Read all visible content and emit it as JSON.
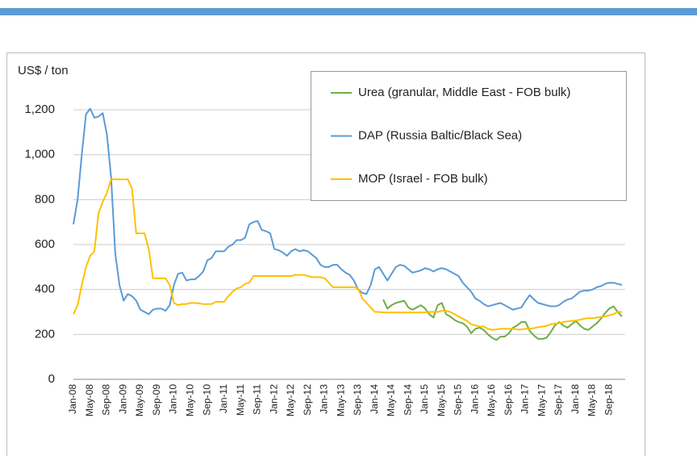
{
  "chart_data": {
    "type": "line",
    "y_label": "US$ / ton",
    "categories": [
      "Jan-08",
      null,
      null,
      null,
      "May-08",
      null,
      null,
      null,
      "Sep-08",
      null,
      null,
      null,
      "Jan-09",
      null,
      null,
      null,
      "May-09",
      null,
      null,
      null,
      "Sep-09",
      null,
      null,
      null,
      "Jan-10",
      null,
      null,
      null,
      "May-10",
      null,
      null,
      null,
      "Sep-10",
      null,
      null,
      null,
      "Jan-11",
      null,
      null,
      null,
      "May-11",
      null,
      null,
      null,
      "Sep-11",
      null,
      null,
      null,
      "Jan-12",
      null,
      null,
      null,
      "May-12",
      null,
      null,
      null,
      "Sep-12",
      null,
      null,
      null,
      "Jan-13",
      null,
      null,
      null,
      "May-13",
      null,
      null,
      null,
      "Sep-13",
      null,
      null,
      null,
      "Jan-14",
      null,
      null,
      null,
      "May-14",
      null,
      null,
      null,
      "Sep-14",
      null,
      null,
      null,
      "Jan-15",
      null,
      null,
      null,
      "May-15",
      null,
      null,
      null,
      "Sep-15",
      null,
      null,
      null,
      "Jan-16",
      null,
      null,
      null,
      "May-16",
      null,
      null,
      null,
      "Sep-16",
      null,
      null,
      null,
      "Jan-17",
      null,
      null,
      null,
      "May-17",
      null,
      null,
      null,
      "Sep-17",
      null,
      null,
      null,
      "Jan-18",
      null,
      null,
      null,
      "May-18",
      null,
      null,
      null,
      "Sep-18",
      null,
      null,
      null
    ],
    "series": [
      {
        "name": "Urea (granular, Middle East - FOB bulk)",
        "color": "#70ad47",
        "values": [
          null,
          null,
          null,
          null,
          null,
          null,
          null,
          null,
          null,
          null,
          null,
          null,
          null,
          null,
          null,
          null,
          null,
          null,
          null,
          null,
          null,
          null,
          null,
          null,
          null,
          null,
          null,
          null,
          null,
          null,
          null,
          null,
          null,
          null,
          null,
          null,
          null,
          null,
          null,
          null,
          null,
          null,
          null,
          null,
          null,
          null,
          null,
          null,
          null,
          null,
          null,
          null,
          null,
          null,
          null,
          null,
          null,
          null,
          null,
          null,
          null,
          null,
          null,
          null,
          null,
          null,
          null,
          null,
          null,
          null,
          null,
          null,
          null,
          null,
          355,
          315,
          330,
          340,
          345,
          350,
          320,
          310,
          320,
          330,
          315,
          290,
          275,
          330,
          340,
          290,
          280,
          265,
          255,
          250,
          235,
          205,
          225,
          230,
          220,
          200,
          185,
          175,
          190,
          190,
          205,
          230,
          240,
          255,
          255,
          215,
          195,
          180,
          180,
          185,
          210,
          240,
          255,
          240,
          230,
          245,
          260,
          240,
          225,
          220,
          235,
          250,
          270,
          295,
          315,
          325,
          300,
          280
        ]
      },
      {
        "name": "DAP (Russia Baltic/Black Sea)",
        "color": "#5b9bd5",
        "values": [
          690,
          800,
          1000,
          1180,
          1205,
          1165,
          1170,
          1185,
          1090,
          900,
          560,
          420,
          350,
          380,
          370,
          350,
          310,
          300,
          290,
          310,
          315,
          315,
          305,
          330,
          420,
          470,
          475,
          440,
          445,
          445,
          460,
          480,
          530,
          540,
          570,
          570,
          570,
          590,
          600,
          620,
          620,
          630,
          690,
          700,
          705,
          665,
          660,
          650,
          580,
          575,
          565,
          550,
          570,
          580,
          570,
          575,
          570,
          555,
          540,
          510,
          500,
          500,
          510,
          510,
          490,
          475,
          465,
          440,
          400,
          385,
          380,
          420,
          490,
          500,
          470,
          440,
          470,
          500,
          510,
          505,
          490,
          475,
          480,
          485,
          495,
          490,
          480,
          490,
          495,
          490,
          480,
          470,
          460,
          430,
          410,
          390,
          360,
          350,
          335,
          325,
          330,
          335,
          340,
          330,
          320,
          310,
          315,
          320,
          350,
          375,
          355,
          340,
          335,
          330,
          325,
          325,
          330,
          345,
          355,
          360,
          375,
          390,
          395,
          395,
          400,
          410,
          415,
          425,
          430,
          430,
          425,
          420
        ]
      },
      {
        "name": "MOP (Israel - FOB bulk)",
        "color": "#ffc000",
        "values": [
          290,
          330,
          420,
          500,
          550,
          570,
          740,
          790,
          830,
          890,
          890,
          890,
          890,
          890,
          850,
          650,
          650,
          650,
          580,
          450,
          450,
          450,
          450,
          420,
          340,
          330,
          335,
          335,
          340,
          340,
          338,
          335,
          335,
          335,
          345,
          345,
          345,
          370,
          390,
          405,
          410,
          425,
          430,
          460,
          460,
          460,
          460,
          460,
          460,
          460,
          460,
          460,
          460,
          465,
          465,
          465,
          460,
          455,
          455,
          455,
          450,
          430,
          410,
          410,
          410,
          410,
          410,
          410,
          405,
          360,
          340,
          320,
          300,
          300,
          298,
          298,
          298,
          298,
          298,
          298,
          298,
          298,
          298,
          298,
          298,
          300,
          300,
          300,
          305,
          305,
          300,
          290,
          280,
          270,
          260,
          245,
          240,
          235,
          235,
          225,
          220,
          222,
          225,
          225,
          225,
          225,
          222,
          222,
          225,
          225,
          228,
          232,
          235,
          238,
          245,
          248,
          250,
          255,
          258,
          260,
          262,
          265,
          270,
          272,
          272,
          275,
          278,
          280,
          285,
          290,
          300,
          300
        ]
      }
    ],
    "ylim": [
      0,
      1300
    ],
    "yticks": [
      0,
      200,
      400,
      600,
      800,
      {
        "value": 1000,
        "label": "1,000"
      },
      {
        "value": 1200,
        "label": "1,200"
      }
    ],
    "grid": true,
    "legend": "upper right"
  }
}
